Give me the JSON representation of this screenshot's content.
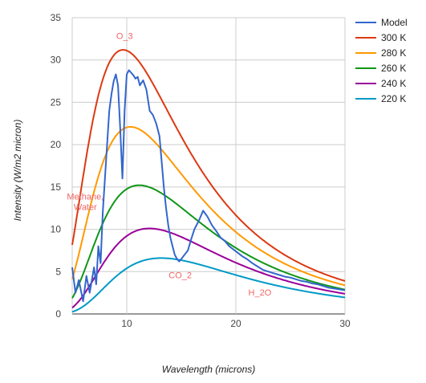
{
  "chart_data": {
    "type": "line",
    "title": "",
    "xlabel": "Wavelength (microns)",
    "ylabel": "Intensity (W/m2 micron)",
    "xlim": [
      5,
      30
    ],
    "ylim": [
      0,
      35
    ],
    "x_ticks": [
      10,
      20,
      30
    ],
    "y_ticks": [
      0,
      5,
      10,
      15,
      20,
      25,
      30,
      35
    ],
    "grid": true,
    "legend_position": "right",
    "series": [
      {
        "name": "Model",
        "color": "#3366cc",
        "x": [
          5,
          5.3,
          5.6,
          6,
          6.3,
          6.6,
          7,
          7.2,
          7.4,
          7.6,
          7.8,
          8,
          8.2,
          8.4,
          8.6,
          8.8,
          9,
          9.2,
          9.4,
          9.6,
          9.8,
          10,
          10.2,
          10.4,
          10.6,
          10.8,
          11,
          11.2,
          11.5,
          11.8,
          12.1,
          12.4,
          12.7,
          13,
          13.2,
          13.4,
          13.6,
          13.8,
          14,
          14.2,
          14.4,
          14.6,
          14.8,
          15,
          15.3,
          15.6,
          15.9,
          16.2,
          16.6,
          17,
          17.4,
          17.8,
          18.2,
          18.6,
          19,
          19.4,
          19.8,
          20.2,
          20.6,
          21,
          21.5,
          22,
          22.5,
          23,
          23.5,
          24,
          24.5,
          25,
          25.5,
          26,
          26.5,
          27,
          27.5,
          28,
          28.5,
          29,
          29.5,
          30
        ],
        "y": [
          5.5,
          2.5,
          4,
          1.5,
          4.5,
          2.5,
          5.5,
          3.5,
          8,
          6,
          12,
          16,
          20,
          24,
          26,
          27.5,
          28.3,
          27,
          22,
          16,
          24,
          28.3,
          28.8,
          28.5,
          28.2,
          27.8,
          28,
          27,
          27.6,
          26.5,
          24,
          23.5,
          22.5,
          21,
          18,
          15,
          12.5,
          10.5,
          9,
          8,
          7,
          6.5,
          6.2,
          6.5,
          7,
          7.5,
          8.8,
          10,
          11,
          12.2,
          11.5,
          10.5,
          9.8,
          9,
          8.6,
          8,
          7.6,
          7.2,
          6.8,
          6.5,
          6,
          5.6,
          5.2,
          5,
          4.8,
          4.6,
          4.4,
          4.3,
          4.1,
          3.9,
          3.8,
          3.6,
          3.5,
          3.3,
          3.1,
          3,
          2.9,
          2.8
        ]
      },
      {
        "name": "300 K",
        "color": "#dc3912",
        "temperature": 300,
        "peak": 31.2
      },
      {
        "name": "280 K",
        "color": "#ff9900",
        "temperature": 280,
        "peak": 22.1
      },
      {
        "name": "260 K",
        "color": "#109618",
        "temperature": 260,
        "peak": 15.2
      },
      {
        "name": "240 K",
        "color": "#990099",
        "temperature": 240,
        "peak": 10.1
      },
      {
        "name": "220 K",
        "color": "#0099c6",
        "temperature": 220,
        "peak": 6.6
      }
    ],
    "annotations": [
      {
        "text": "O_3",
        "x": 9.8,
        "y": 32.5
      },
      {
        "text": "Methane,",
        "x": 6.2,
        "y": 13.5
      },
      {
        "text": "Water",
        "x": 6.2,
        "y": 12.3
      },
      {
        "text": "CO_2",
        "x": 14.9,
        "y": 4.2
      },
      {
        "text": "H_2O",
        "x": 22.2,
        "y": 2.2
      }
    ]
  }
}
